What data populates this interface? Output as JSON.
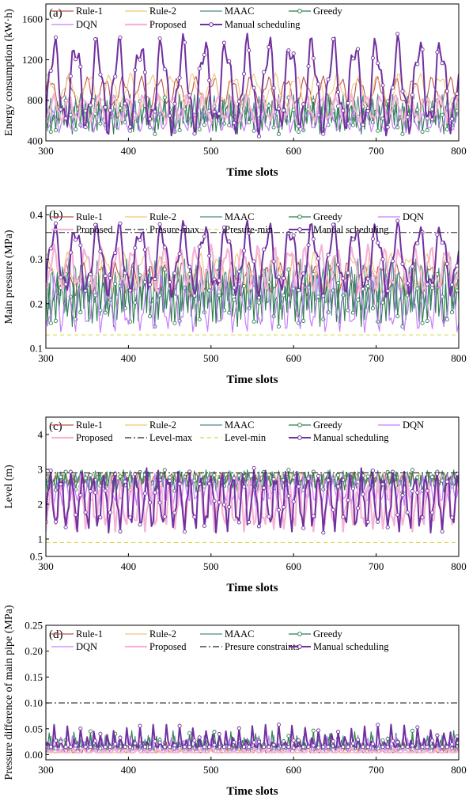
{
  "colors": {
    "Rule-1": "#c0504d",
    "Rule-2": "#f2c778",
    "MAAC": "#4f8a8b",
    "Greedy": "#2e7d4f",
    "DQN": "#c77dff",
    "Proposed": "#f6b3d6",
    "Manual scheduling": "#7030a0",
    "Presure-max": "#222222",
    "Presure-min": "#d8d84a",
    "Level-max": "#222222",
    "Level-min": "#d8d84a",
    "Presure constraints": "#222222"
  },
  "chart_data": [
    {
      "panel": "(a)",
      "type": "line",
      "xlabel": "Time slots",
      "ylabel": "Energy consumption (kW·h)",
      "xlim": [
        300,
        800
      ],
      "ylim": [
        400,
        1750
      ],
      "xticks": [
        "300",
        "400",
        "500",
        "600",
        "700",
        "800"
      ],
      "yticks": [
        "400",
        "800",
        "1200",
        "1600"
      ],
      "ytick_values": [
        400,
        800,
        1200,
        1600
      ],
      "legend": [
        "Rule-1",
        "Rule-2",
        "MAAC",
        "Greedy",
        "DQN",
        "Proposed",
        "Manual scheduling"
      ],
      "series": [
        {
          "name": "Rule-1",
          "base": 880,
          "amp": 120,
          "period": 22
        },
        {
          "name": "Rule-2",
          "base": 900,
          "amp": 130,
          "period": 25
        },
        {
          "name": "MAAC",
          "base": 700,
          "amp": 120,
          "period": 6
        },
        {
          "name": "Greedy",
          "base": 640,
          "amp": 140,
          "period": 5
        },
        {
          "name": "DQN",
          "base": 600,
          "amp": 90,
          "period": 14
        },
        {
          "name": "Proposed",
          "base": 720,
          "amp": 110,
          "period": 18
        },
        {
          "name": "Manual scheduling",
          "base": 950,
          "amp": 380,
          "period": 26
        }
      ]
    },
    {
      "panel": "(b)",
      "type": "line",
      "xlabel": "Time slots",
      "ylabel": "Main pressure (MPa)",
      "xlim": [
        300,
        800
      ],
      "ylim": [
        0.1,
        0.42
      ],
      "xticks": [
        "300",
        "400",
        "500",
        "600",
        "700",
        "800"
      ],
      "yticks": [
        "0.1",
        "0.2",
        "0.3",
        "0.4"
      ],
      "ytick_values": [
        0.1,
        0.2,
        0.3,
        0.4
      ],
      "legend": [
        "Rule-1",
        "Rule-2",
        "MAAC",
        "Greedy",
        "DQN",
        "Proposed",
        "Presure-max",
        "Presure-min",
        "Manual scheduling"
      ],
      "hlines": [
        {
          "name": "Presure-max",
          "value": 0.36,
          "style": "dashdot"
        },
        {
          "name": "Presure-min",
          "value": 0.13,
          "style": "dash"
        }
      ],
      "series": [
        {
          "name": "Rule-1",
          "base": 0.255,
          "amp": 0.03,
          "period": 20
        },
        {
          "name": "Rule-2",
          "base": 0.27,
          "amp": 0.035,
          "period": 23
        },
        {
          "name": "MAAC",
          "base": 0.24,
          "amp": 0.05,
          "period": 7
        },
        {
          "name": "Greedy",
          "base": 0.21,
          "amp": 0.05,
          "period": 5
        },
        {
          "name": "DQN",
          "base": 0.2,
          "amp": 0.05,
          "period": 16
        },
        {
          "name": "Proposed",
          "base": 0.28,
          "amp": 0.04,
          "period": 19
        },
        {
          "name": "Manual scheduling",
          "base": 0.3,
          "amp": 0.065,
          "period": 26
        }
      ]
    },
    {
      "panel": "(c)",
      "type": "line",
      "xlabel": "Time slots",
      "ylabel": "Level (m)",
      "xlim": [
        300,
        800
      ],
      "ylim": [
        0.5,
        4.5
      ],
      "xticks": [
        "300",
        "400",
        "500",
        "600",
        "700",
        "800"
      ],
      "yticks": [
        "0.5",
        "1",
        "2",
        "3",
        "4"
      ],
      "ytick_values": [
        0.5,
        1,
        2,
        3,
        4
      ],
      "legend": [
        "Rule-1",
        "Rule-2",
        "MAAC",
        "Greedy",
        "DQN",
        "Proposed",
        "Level-max",
        "Level-min",
        "Manual scheduling"
      ],
      "hlines": [
        {
          "name": "Level-max",
          "value": 2.9,
          "style": "dashdot"
        },
        {
          "name": "Level-min",
          "value": 0.9,
          "style": "dash"
        }
      ],
      "series": [
        {
          "name": "Rule-1",
          "base": 2.75,
          "amp": 0.12,
          "period": 10
        },
        {
          "name": "Rule-2",
          "base": 2.75,
          "amp": 0.12,
          "period": 11
        },
        {
          "name": "MAAC",
          "base": 2.7,
          "amp": 0.2,
          "period": 6
        },
        {
          "name": "Greedy",
          "base": 2.65,
          "amp": 0.25,
          "period": 5
        },
        {
          "name": "DQN",
          "base": 2.4,
          "amp": 0.35,
          "period": 9
        },
        {
          "name": "Proposed",
          "base": 2.0,
          "amp": 0.6,
          "period": 12
        },
        {
          "name": "Manual scheduling",
          "base": 2.1,
          "amp": 0.7,
          "period": 13
        }
      ]
    },
    {
      "panel": "(d)",
      "type": "line",
      "xlabel": "Time slots",
      "ylabel": "Pressure difference of main pipe (MPa)",
      "xlim": [
        300,
        800
      ],
      "ylim": [
        -0.01,
        0.25
      ],
      "xticks": [
        "300",
        "400",
        "500",
        "600",
        "700",
        "800"
      ],
      "yticks": [
        "0.00",
        "0.05",
        "0.10",
        "0.15",
        "0.20",
        "0.25"
      ],
      "ytick_values": [
        0,
        0.05,
        0.1,
        0.15,
        0.2,
        0.25
      ],
      "legend": [
        "Rule-1",
        "Rule-2",
        "MAAC",
        "Greedy",
        "DQN",
        "Proposed",
        "Presure constraints",
        "Manual scheduling"
      ],
      "hlines": [
        {
          "name": "Presure constraints",
          "value": 0.1,
          "style": "dashdot"
        }
      ],
      "series": [
        {
          "name": "Rule-1",
          "base": 0.004,
          "amp": 0.02,
          "period": 9
        },
        {
          "name": "Rule-2",
          "base": 0.004,
          "amp": 0.015,
          "period": 11
        },
        {
          "name": "MAAC",
          "base": 0.01,
          "amp": 0.03,
          "period": 6
        },
        {
          "name": "Greedy",
          "base": 0.012,
          "amp": 0.035,
          "period": 5
        },
        {
          "name": "DQN",
          "base": 0.008,
          "amp": 0.03,
          "period": 7
        },
        {
          "name": "Proposed",
          "base": 0.004,
          "amp": 0.01,
          "period": 13
        },
        {
          "name": "Manual scheduling",
          "base": 0.015,
          "amp": 0.045,
          "period": 8
        }
      ]
    }
  ]
}
